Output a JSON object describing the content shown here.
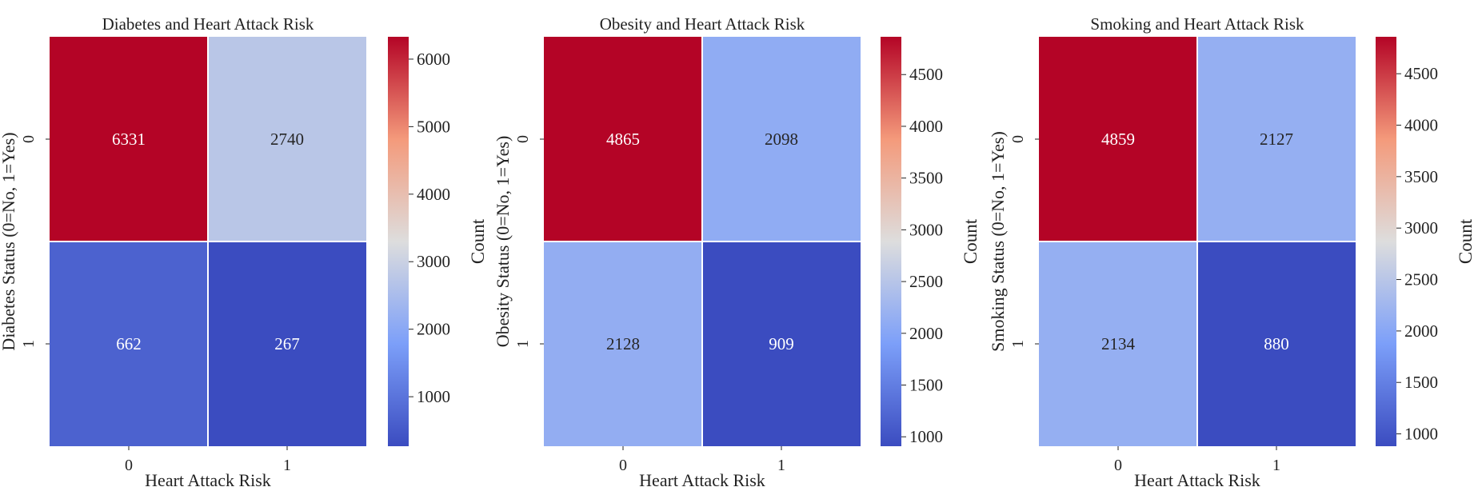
{
  "chart_data": [
    {
      "type": "heatmap",
      "title": "Diabetes and Heart Attack Risk",
      "xlabel": "Heart Attack Risk",
      "ylabel": "Diabetes Status (0=No, 1=Yes)",
      "x_categories": [
        "0",
        "1"
      ],
      "y_categories": [
        "0",
        "1"
      ],
      "values": [
        [
          6331,
          2740
        ],
        [
          662,
          267
        ]
      ],
      "colorbar": {
        "label": "Count",
        "min": 267,
        "max": 6331,
        "ticks": [
          1000,
          2000,
          3000,
          4000,
          5000,
          6000
        ]
      },
      "colormap": "coolwarm"
    },
    {
      "type": "heatmap",
      "title": "Obesity and Heart Attack Risk",
      "xlabel": "Heart Attack Risk",
      "ylabel": "Obesity Status (0=No, 1=Yes)",
      "x_categories": [
        "0",
        "1"
      ],
      "y_categories": [
        "0",
        "1"
      ],
      "values": [
        [
          4865,
          2098
        ],
        [
          2128,
          909
        ]
      ],
      "colorbar": {
        "label": "Count",
        "min": 909,
        "max": 4865,
        "ticks": [
          1000,
          1500,
          2000,
          2500,
          3000,
          3500,
          4000,
          4500
        ]
      },
      "colormap": "coolwarm"
    },
    {
      "type": "heatmap",
      "title": "Smoking and Heart Attack Risk",
      "xlabel": "Heart Attack Risk",
      "ylabel": "Smoking Status (0=No, 1=Yes)",
      "x_categories": [
        "0",
        "1"
      ],
      "y_categories": [
        "0",
        "1"
      ],
      "values": [
        [
          4859,
          2127
        ],
        [
          2134,
          880
        ]
      ],
      "colorbar": {
        "label": "Count",
        "min": 880,
        "max": 4859,
        "ticks": [
          1000,
          1500,
          2000,
          2500,
          3000,
          3500,
          4000,
          4500
        ]
      },
      "colormap": "coolwarm"
    }
  ]
}
